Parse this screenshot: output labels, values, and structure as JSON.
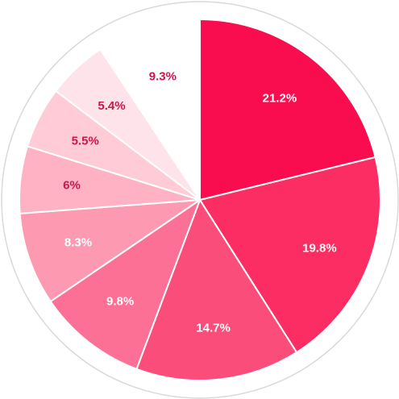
{
  "chart_data": {
    "type": "pie",
    "start_angle_deg": 0,
    "direction": "clockwise",
    "slices": [
      {
        "value": 21.2,
        "label": "21.2%",
        "color": "#f90d4e",
        "label_color": "#ffffff"
      },
      {
        "value": 19.8,
        "label": "19.8%",
        "color": "#fc2d63",
        "label_color": "#ffffff"
      },
      {
        "value": 14.7,
        "label": "14.7%",
        "color": "#fb4d79",
        "label_color": "#ffffff"
      },
      {
        "value": 9.8,
        "label": "9.8%",
        "color": "#fb7094",
        "label_color": "#ffffff"
      },
      {
        "value": 8.3,
        "label": "8.3%",
        "color": "#fd9ab2",
        "label_color": "#ffffff"
      },
      {
        "value": 6,
        "label": "6%",
        "color": "#feb2c4",
        "label_color": "#c8184d"
      },
      {
        "value": 5.5,
        "label": "5.5%",
        "color": "#fecbd7",
        "label_color": "#c8184d"
      },
      {
        "value": 5.4,
        "label": "5.4%",
        "color": "#fee3ea",
        "label_color": "#c8184d"
      },
      {
        "value": 9.3,
        "label": "9.3%",
        "color": "#ffffff",
        "label_color": "#c8184d"
      }
    ],
    "outer_ring_color": "#d9d9d9",
    "separator_color": "#ffffff"
  }
}
